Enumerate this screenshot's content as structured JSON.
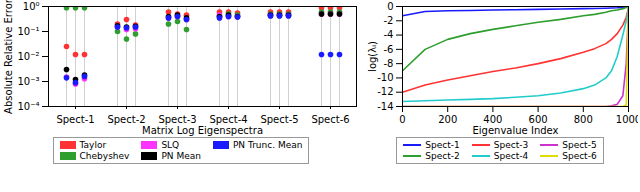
{
  "chart_data": [
    {
      "type": "scatter",
      "x_label": "Matrix Log Eigenspectra",
      "y_label": "Absolute Relative Error",
      "categories": [
        "Spect-1",
        "Spect-2",
        "Spect-3",
        "Spect-4",
        "Spect-5",
        "Spect-6"
      ],
      "log": "y",
      "ylim": [
        0.0001,
        1
      ],
      "yticks": [
        {
          "value": 0.0001,
          "label": "10⁻⁴"
        },
        {
          "value": 0.001,
          "label": "10⁻³"
        },
        {
          "value": 0.01,
          "label": "10⁻²"
        },
        {
          "value": 0.1,
          "label": "10⁻¹"
        },
        {
          "value": 1,
          "label": "10⁰"
        }
      ],
      "marker": "circle",
      "legend": "bottom",
      "series": [
        {
          "name": "Taylor",
          "color": "#ff3333",
          "values": [
            [
              0.025,
              0.012,
              0.012
            ],
            [
              0.2,
              0.3,
              0.18
            ],
            [
              0.6,
              0.5,
              0.45
            ],
            [
              0.6,
              0.6,
              0.55
            ],
            [
              0.6,
              0.6,
              0.6
            ],
            [
              0.9,
              0.9,
              0.9
            ]
          ]
        },
        {
          "name": "Chebyshev",
          "color": "#2e9e2e",
          "values": [
            [
              0.9,
              0.9,
              0.9
            ],
            [
              0.1,
              0.05,
              0.08
            ],
            [
              0.2,
              0.25,
              0.12
            ],
            [
              0.4,
              0.5,
              0.45
            ],
            [
              0.5,
              0.5,
              0.5
            ],
            [
              0.6,
              0.6,
              0.6
            ]
          ]
        },
        {
          "name": "SLQ",
          "color": "#ff33ff",
          "values": [
            [
              0.0015,
              0.0008,
              0.0013
            ],
            [
              0.15,
              0.12,
              0.13
            ],
            [
              0.35,
              0.4,
              0.3
            ],
            [
              0.45,
              0.4,
              0.4
            ],
            [
              0.45,
              0.45,
              0.45
            ],
            [
              0.5,
              0.5,
              0.5
            ]
          ]
        },
        {
          "name": "PN Mean",
          "color": "#000000",
          "values": [
            [
              0.003,
              0.0012,
              0.0018
            ],
            [
              0.17,
              0.15,
              0.16
            ],
            [
              0.4,
              0.45,
              0.35
            ],
            [
              0.4,
              0.45,
              0.4
            ],
            [
              0.45,
              0.45,
              0.45
            ],
            [
              0.5,
              0.5,
              0.5
            ]
          ]
        },
        {
          "name": "PN Trunc. Mean",
          "color": "#1a1aff",
          "values": [
            [
              0.0014,
              0.0009,
              0.0016
            ],
            [
              0.15,
              0.14,
              0.15
            ],
            [
              0.35,
              0.4,
              0.3
            ],
            [
              0.35,
              0.4,
              0.38
            ],
            [
              0.42,
              0.42,
              0.42
            ],
            [
              0.012,
              0.012,
              0.012
            ]
          ]
        }
      ]
    },
    {
      "type": "line",
      "x_label": "Eigenvalue Index",
      "y_label": "log(λᵢ)",
      "x": [
        0,
        100,
        200,
        300,
        400,
        500,
        600,
        700,
        800,
        850,
        900,
        925,
        950,
        975,
        990,
        1000
      ],
      "xlim": [
        0,
        1000
      ],
      "xticks": [
        0,
        200,
        400,
        600,
        800,
        1000
      ],
      "ylim": [
        -14,
        0
      ],
      "yticks": [
        -14,
        -12,
        -10,
        -8,
        -6,
        -4,
        -2,
        0
      ],
      "legend": "bottom",
      "series": [
        {
          "name": "Spect-1",
          "color": "#1a1aff",
          "values": [
            -1.3,
            -0.7,
            -0.6,
            -0.55,
            -0.5,
            -0.45,
            -0.4,
            -0.35,
            -0.3,
            -0.28,
            -0.25,
            -0.22,
            -0.18,
            -0.12,
            -0.08,
            0
          ]
        },
        {
          "name": "Spect-2",
          "color": "#2e9e2e",
          "values": [
            -9,
            -6,
            -4.6,
            -3.8,
            -3.2,
            -2.7,
            -2.2,
            -1.8,
            -1.3,
            -1.1,
            -0.8,
            -0.6,
            -0.5,
            -0.3,
            -0.15,
            0
          ]
        },
        {
          "name": "Spect-3",
          "color": "#ff3333",
          "values": [
            -12,
            -11,
            -10.3,
            -9.7,
            -9.1,
            -8.6,
            -8,
            -7.3,
            -6.4,
            -5.9,
            -5.2,
            -4.6,
            -3.8,
            -2.6,
            -1.5,
            -0.2
          ]
        },
        {
          "name": "Spect-4",
          "color": "#22cccc",
          "values": [
            -13.3,
            -13.2,
            -13.1,
            -13,
            -12.9,
            -12.7,
            -12.5,
            -12.1,
            -11.5,
            -11,
            -10,
            -9,
            -7,
            -4,
            -2,
            -0.2
          ]
        },
        {
          "name": "Spect-5",
          "color": "#cc33cc",
          "values": [
            -14,
            -14,
            -14,
            -14,
            -14,
            -14,
            -14,
            -14,
            -14,
            -14,
            -14,
            -13.9,
            -13.7,
            -12.5,
            -8,
            -0.3
          ]
        },
        {
          "name": "Spect-6",
          "color": "#dddd00",
          "values": [
            -14,
            -14,
            -14,
            -14,
            -14,
            -14,
            -14,
            -14,
            -14,
            -14,
            -14,
            -14,
            -14,
            -14,
            -13.8,
            0
          ]
        }
      ]
    }
  ]
}
